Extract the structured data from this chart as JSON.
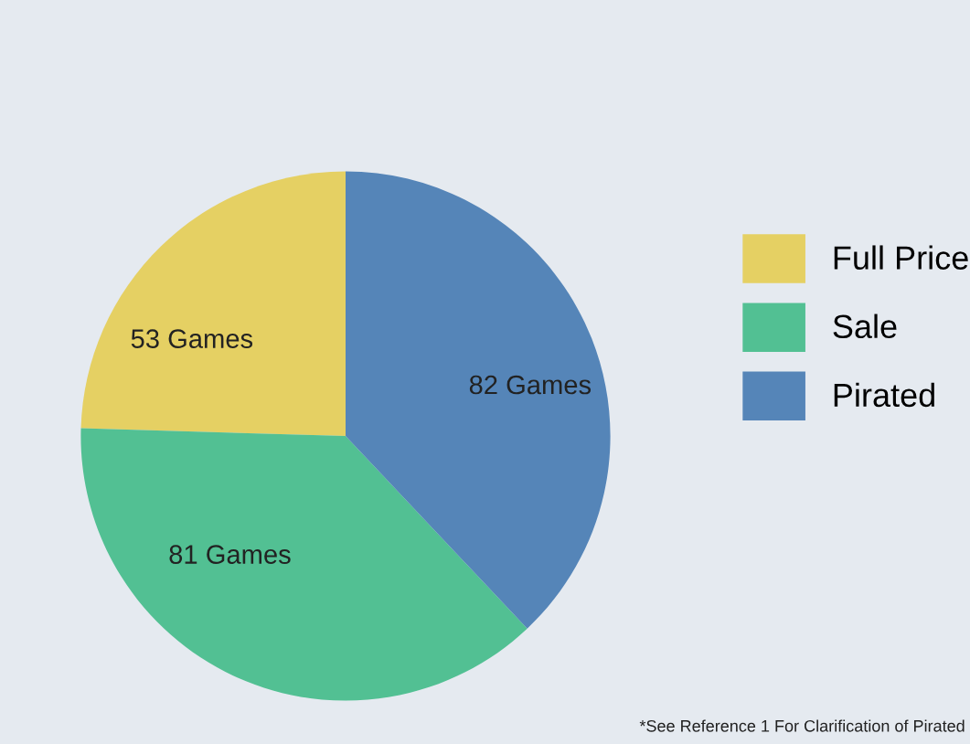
{
  "chart_data": {
    "type": "pie",
    "categories": [
      "Full Price",
      "Sale",
      "Pirated"
    ],
    "values": [
      53,
      81,
      82
    ],
    "colors": [
      "#e5d063",
      "#52c093",
      "#5585b8"
    ],
    "value_labels": [
      "53 Games",
      "81 Games",
      "82 Games"
    ],
    "legend": "right",
    "annotations": [
      "*See Reference 1 For Clarification of Pirated"
    ]
  }
}
